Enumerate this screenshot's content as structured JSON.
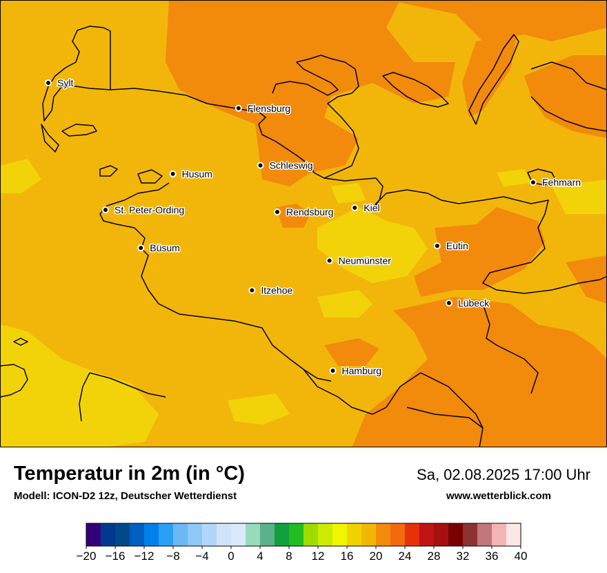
{
  "map": {
    "cities": [
      {
        "name": "Sylt",
        "lon": 8.31,
        "lat": 54.91
      },
      {
        "name": "Flensburg",
        "lon": 9.44,
        "lat": 54.79
      },
      {
        "name": "Schleswig",
        "lon": 9.57,
        "lat": 54.52
      },
      {
        "name": "Husum",
        "lon": 9.05,
        "lat": 54.48
      },
      {
        "name": "Fehmarn",
        "lon": 11.19,
        "lat": 54.44
      },
      {
        "name": "St. Peter-Ording",
        "lon": 8.65,
        "lat": 54.31
      },
      {
        "name": "Rendsburg",
        "lon": 9.67,
        "lat": 54.3
      },
      {
        "name": "Kiel",
        "lon": 10.13,
        "lat": 54.32
      },
      {
        "name": "Büsum",
        "lon": 8.86,
        "lat": 54.13
      },
      {
        "name": "Eutin",
        "lon": 10.62,
        "lat": 54.14
      },
      {
        "name": "Neumünster",
        "lon": 9.98,
        "lat": 54.07
      },
      {
        "name": "Itzehoe",
        "lon": 9.52,
        "lat": 53.93
      },
      {
        "name": "Lübeck",
        "lon": 10.69,
        "lat": 53.87
      },
      {
        "name": "Hamburg",
        "lon": 10.0,
        "lat": 53.55
      }
    ]
  },
  "footer": {
    "title": "Temperatur in 2m (in °C)",
    "subtitle": "Modell: ICON-D2 12z, Deutscher Wetterdienst",
    "datetime": "Sa, 02.08.2025 17:00 Uhr",
    "website": "www.wetterblick.com"
  },
  "legend": {
    "ticks": [
      "−20",
      "−16",
      "−12",
      "−8",
      "−4",
      "0",
      "4",
      "8",
      "12",
      "16",
      "20",
      "24",
      "28",
      "32",
      "36",
      "40"
    ],
    "colors": [
      "#33007a",
      "#003a8c",
      "#004a8a",
      "#005fc0",
      "#0080e8",
      "#2aa0f5",
      "#6ab8f5",
      "#8ec8f8",
      "#b0d7fb",
      "#cfe4fb",
      "#daeafc",
      "#96dcbc",
      "#5ab28a",
      "#10a03c",
      "#20be20",
      "#9edc00",
      "#cceb00",
      "#f0f500",
      "#f2d200",
      "#f2b705",
      "#f28a0c",
      "#f26a0c",
      "#e6320a",
      "#c01414",
      "#a81010",
      "#7a0000",
      "#8c3232",
      "#c07878",
      "#f5b4b4",
      "#fde6e6"
    ]
  }
}
